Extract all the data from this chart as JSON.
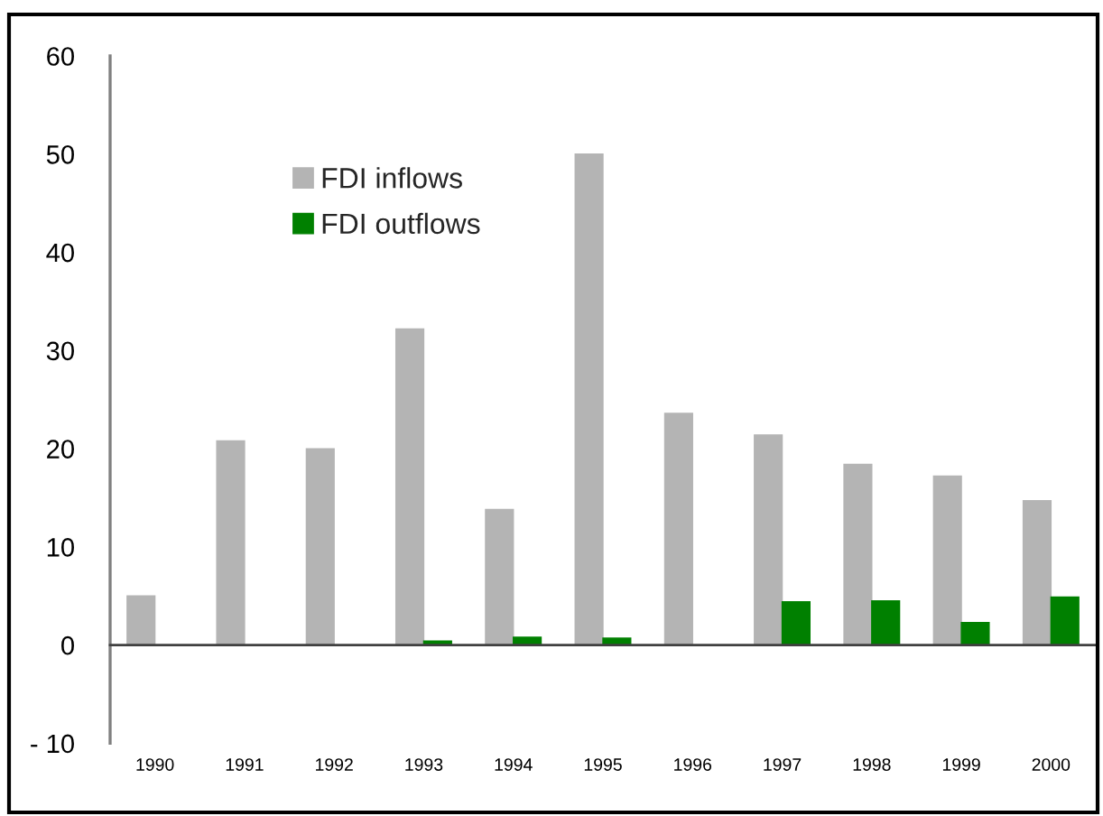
{
  "chart_data": {
    "type": "bar",
    "categories": [
      "1990",
      "1991",
      "1992",
      "1993",
      "1994",
      "1995",
      "1996",
      "1997",
      "1998",
      "1999",
      "2000"
    ],
    "series": [
      {
        "name": "FDI inflows",
        "color": "#b4b4b4",
        "values": [
          5.0,
          20.8,
          20.0,
          32.2,
          13.8,
          50.0,
          23.6,
          21.4,
          18.4,
          17.2,
          14.7
        ]
      },
      {
        "name": "FDI outflows",
        "color": "#008000",
        "values": [
          null,
          null,
          null,
          0.4,
          0.8,
          0.7,
          null,
          4.4,
          4.5,
          2.3,
          4.9
        ]
      }
    ],
    "ylim": [
      -10,
      60
    ],
    "yticks": [
      {
        "value": -10,
        "label": "- 10"
      },
      0,
      10,
      20,
      30,
      40,
      50,
      60
    ],
    "legend": "top left"
  }
}
